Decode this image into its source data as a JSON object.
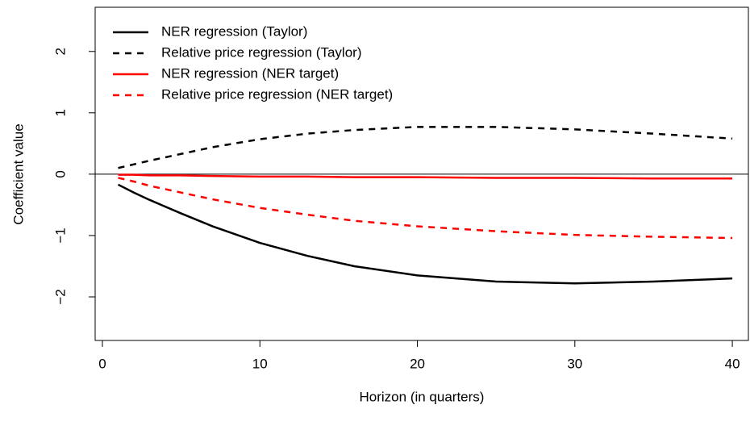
{
  "chart_data": {
    "type": "line",
    "xlabel": "Horizon (in quarters)",
    "ylabel": "Coefficient value",
    "x": [
      1,
      2,
      3,
      5,
      7,
      10,
      13,
      16,
      20,
      25,
      30,
      35,
      40
    ],
    "series": [
      {
        "name": "NER regression (Taylor)",
        "color": "#000000",
        "dash": false,
        "values": [
          -0.17,
          -0.3,
          -0.42,
          -0.64,
          -0.85,
          -1.12,
          -1.33,
          -1.5,
          -1.65,
          -1.75,
          -1.78,
          -1.75,
          -1.7
        ]
      },
      {
        "name": "Relative price regression (Taylor)",
        "color": "#000000",
        "dash": true,
        "values": [
          0.1,
          0.16,
          0.22,
          0.33,
          0.44,
          0.57,
          0.66,
          0.72,
          0.77,
          0.77,
          0.73,
          0.66,
          0.58
        ]
      },
      {
        "name": "NER regression (NER target)",
        "color": "#ff0000",
        "dash": false,
        "values": [
          -0.01,
          -0.01,
          -0.02,
          -0.02,
          -0.03,
          -0.04,
          -0.04,
          -0.05,
          -0.05,
          -0.06,
          -0.06,
          -0.07,
          -0.07
        ]
      },
      {
        "name": "Relative price regression (NER target)",
        "color": "#ff0000",
        "dash": true,
        "values": [
          -0.06,
          -0.12,
          -0.19,
          -0.3,
          -0.41,
          -0.55,
          -0.66,
          -0.76,
          -0.85,
          -0.93,
          -0.99,
          -1.02,
          -1.04
        ]
      }
    ],
    "reference_line": 0,
    "xlim": [
      -0.46,
      41.02
    ],
    "ylim": [
      -2.71,
      2.72
    ],
    "xticks": [
      0,
      10,
      20,
      30,
      40
    ],
    "yticks": [
      {
        "value": -2,
        "label": "−2"
      },
      {
        "value": -1,
        "label": "−1"
      },
      0,
      1,
      2
    ],
    "legend": "top-left"
  }
}
